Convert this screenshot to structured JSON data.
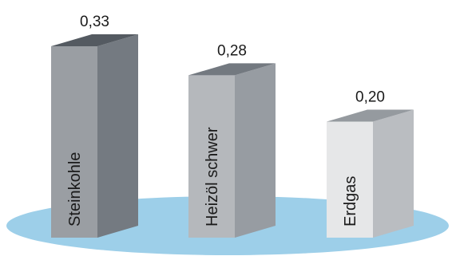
{
  "chart_data": {
    "type": "bar",
    "categories": [
      "Steinkohle",
      "Heizöl schwer",
      "Erdgas"
    ],
    "values": [
      0.33,
      0.28,
      0.2
    ],
    "value_labels": [
      "0,33",
      "0,28",
      "0,20"
    ],
    "title": "",
    "xlabel": "",
    "ylabel": "",
    "ylim": [
      0,
      0.33
    ],
    "grid": false,
    "style": "3d-columns",
    "colors": {
      "base_ellipse": "#9dcfe9",
      "bars": [
        {
          "front": "#9a9ea3",
          "side": "#747a81",
          "top": "#545a61"
        },
        {
          "front": "#b5b8bc",
          "side": "#979ca2",
          "top": "#737980"
        },
        {
          "front": "#e6e7e8",
          "side": "#babdc1",
          "top": "#959a9f"
        }
      ]
    }
  }
}
